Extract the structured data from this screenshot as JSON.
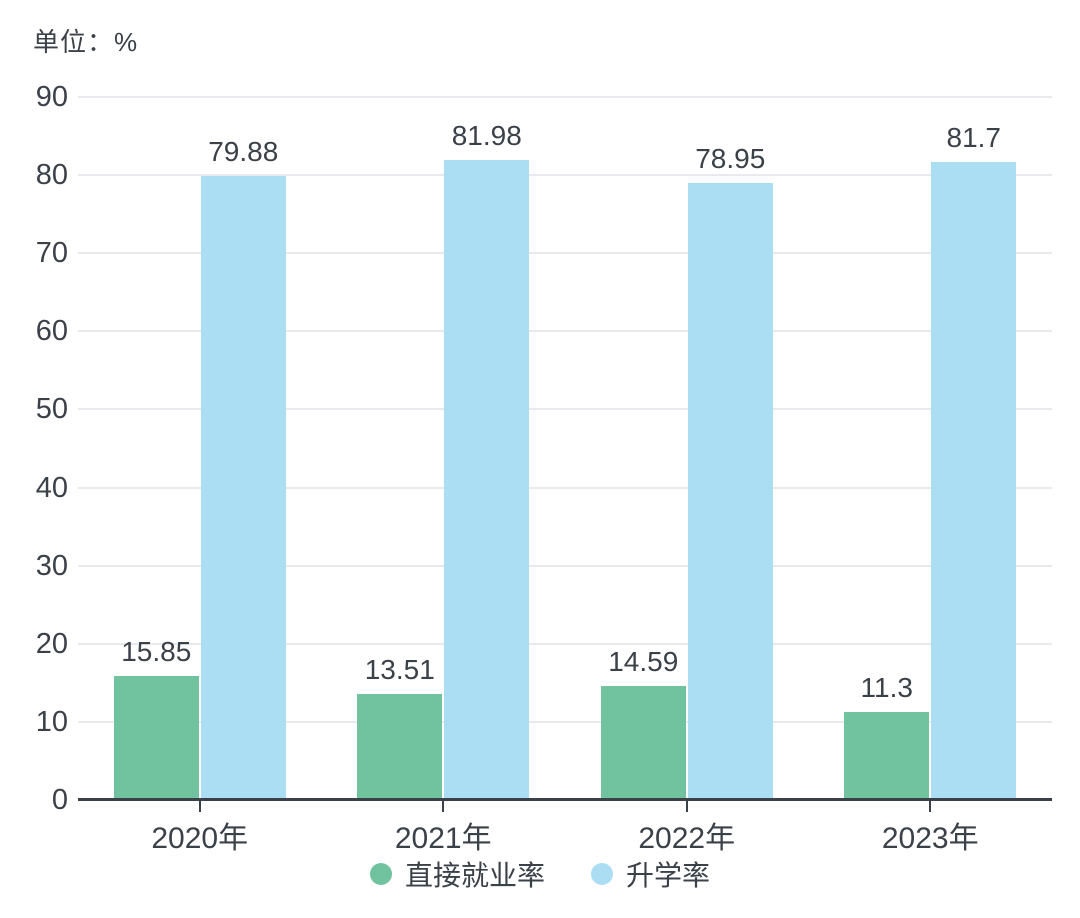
{
  "unit_label": "单位：%",
  "colors": {
    "employment_green": "#70c39e",
    "enrollment_blue": "#abdef2",
    "text_dark": "#3b4148",
    "gridline": "#e7e9ec",
    "axis_line": "#3b4148",
    "background": "#ffffff"
  },
  "chart_data": {
    "type": "bar",
    "title": "",
    "subtitle": "单位：%",
    "categories": [
      "2020年",
      "2021年",
      "2022年",
      "2023年"
    ],
    "series": [
      {
        "name": "直接就业率",
        "color": "#70c39e",
        "values": [
          15.85,
          13.51,
          14.59,
          11.3
        ],
        "value_labels": [
          "15.85",
          "13.51",
          "14.59",
          "11.3"
        ]
      },
      {
        "name": "升学率",
        "color": "#abdef2",
        "values": [
          79.88,
          81.98,
          78.95,
          81.7
        ],
        "value_labels": [
          "79.88",
          "81.98",
          "78.95",
          "81.7"
        ]
      }
    ],
    "xlabel": "",
    "ylabel": "",
    "ylim": [
      0,
      90
    ],
    "yticks": [
      "0",
      "10",
      "20",
      "30",
      "40",
      "50",
      "60",
      "70",
      "80",
      "90"
    ],
    "ytick_values": [
      0,
      10,
      20,
      30,
      40,
      50,
      60,
      70,
      80,
      90
    ],
    "grid": true,
    "legend_position": "bottom",
    "legend": [
      "直接就业率",
      "升学率"
    ]
  }
}
